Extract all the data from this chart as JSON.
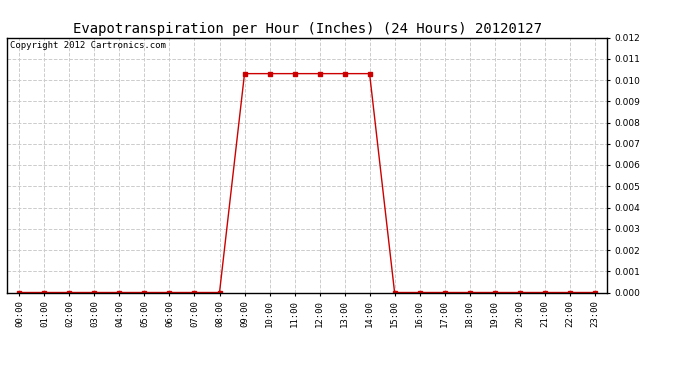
{
  "title": "Evapotranspiration per Hour (Inches) (24 Hours) 20120127",
  "copyright_text": "Copyright 2012 Cartronics.com",
  "background_color": "#ffffff",
  "plot_background_color": "#ffffff",
  "line_color": "#cc0000",
  "marker": "s",
  "marker_size": 2.5,
  "x_hours": [
    0,
    1,
    2,
    3,
    4,
    5,
    6,
    7,
    8,
    9,
    10,
    11,
    12,
    13,
    14,
    15,
    16,
    17,
    18,
    19,
    20,
    21,
    22,
    23
  ],
  "y_values": [
    0.0,
    0.0,
    0.0,
    0.0,
    0.0,
    0.0,
    0.0,
    0.0,
    0.0,
    0.0103,
    0.0103,
    0.0103,
    0.0103,
    0.0103,
    0.0103,
    0.0,
    0.0,
    0.0,
    0.0,
    0.0,
    0.0,
    0.0,
    0.0,
    0.0
  ],
  "ylim": [
    0.0,
    0.012
  ],
  "yticks": [
    0.0,
    0.001,
    0.002,
    0.003,
    0.004,
    0.005,
    0.006,
    0.007,
    0.008,
    0.009,
    0.01,
    0.011,
    0.012
  ],
  "grid_color": "#cccccc",
  "grid_linestyle": "--",
  "title_fontsize": 10,
  "tick_fontsize": 6.5,
  "copyright_fontsize": 6.5
}
